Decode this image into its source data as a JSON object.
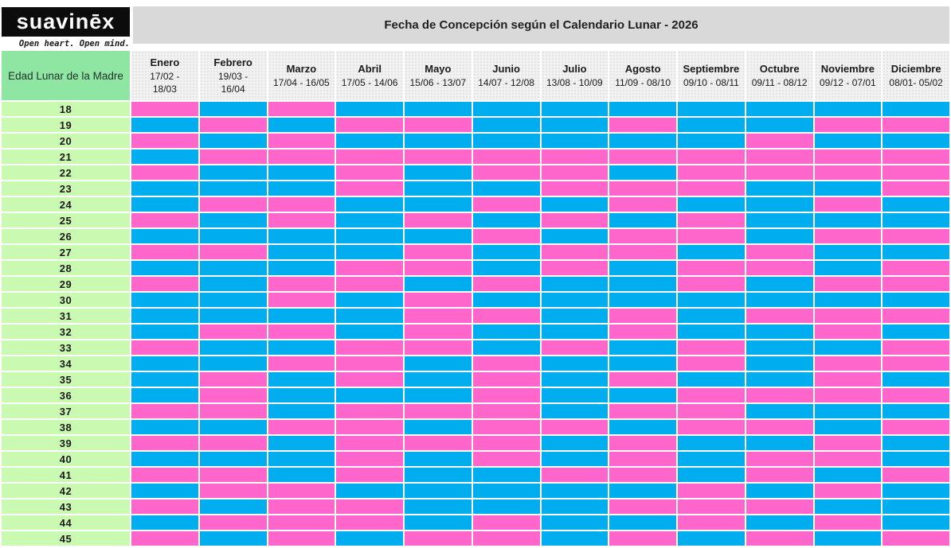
{
  "brand": {
    "logo_text": "suavinēx",
    "tagline": "Open heart. Open mind."
  },
  "title_banner": {
    "text": "Fecha de Concepción según el Calendario Lunar - 2026"
  },
  "chart_data": {
    "type": "heatmap",
    "title": "Fecha de Concepción según el Calendario Lunar - 2026",
    "corner_label": "Edad Lunar de la Madre",
    "legend_note": "P = pink cell, B = blue cell",
    "colors": {
      "pink": "#FF66CC",
      "blue": "#00AEEF",
      "corner_green": "#8FE6A2",
      "age_green": "#CAFAB1",
      "banner_gray": "#D9D9D9",
      "header_gray": "#F2F2F2"
    },
    "columns": [
      {
        "name": "Enero",
        "dates": "17/02 -\n18/03"
      },
      {
        "name": "Febrero",
        "dates": "19/03 -\n16/04"
      },
      {
        "name": "Marzo",
        "dates": "17/04 - 16/05"
      },
      {
        "name": "Abril",
        "dates": "17/05 - 14/06"
      },
      {
        "name": "Mayo",
        "dates": "15/06 - 13/07"
      },
      {
        "name": "Junio",
        "dates": "14/07 - 12/08"
      },
      {
        "name": "Julio",
        "dates": "13/08 - 10/09"
      },
      {
        "name": "Agosto",
        "dates": "11/09 - 08/10"
      },
      {
        "name": "Septiembre",
        "dates": "09/10 - 08/11"
      },
      {
        "name": "Octubre",
        "dates": "09/11 - 08/12"
      },
      {
        "name": "Noviembre",
        "dates": "09/12 - 07/01"
      },
      {
        "name": "Diciembre",
        "dates": "08/01- 05/02"
      }
    ],
    "rows": [
      {
        "age": 18,
        "cells": "PBPBBBBBBBBB"
      },
      {
        "age": 19,
        "cells": "BPBPPBBPBBPP"
      },
      {
        "age": 20,
        "cells": "PBPBBBBBBPBB"
      },
      {
        "age": 21,
        "cells": "BPPPPPPPPPPP"
      },
      {
        "age": 22,
        "cells": "PBBPBPPBPPPP"
      },
      {
        "age": 23,
        "cells": "BBBPBBPPPBBP"
      },
      {
        "age": 24,
        "cells": "BPPBBPBPBBPB"
      },
      {
        "age": 25,
        "cells": "PBPBPBPBPBBB"
      },
      {
        "age": 26,
        "cells": "BBBBBPBPPBPP"
      },
      {
        "age": 27,
        "cells": "PPBBPBPPBPBB"
      },
      {
        "age": 28,
        "cells": "BBBPPBPBPPBP"
      },
      {
        "age": 29,
        "cells": "PBPPBPBBPBPP"
      },
      {
        "age": 30,
        "cells": "BBPBPBBBBBBB"
      },
      {
        "age": 31,
        "cells": "BBBBPPBPBPPP"
      },
      {
        "age": 32,
        "cells": "BPPBPBBPBBPB"
      },
      {
        "age": 33,
        "cells": "PBBPPBPBPBBP"
      },
      {
        "age": 34,
        "cells": "BBPPBPBBPBPP"
      },
      {
        "age": 35,
        "cells": "BPBPBPBPBBPB"
      },
      {
        "age": 36,
        "cells": "BPBBBPBBPPPP"
      },
      {
        "age": 37,
        "cells": "PPBPPPBPPBBB"
      },
      {
        "age": 38,
        "cells": "BBPPBPPBPPBP"
      },
      {
        "age": 39,
        "cells": "PPBPPPBPBBPB"
      },
      {
        "age": 40,
        "cells": "BBBPBPBPBPPB"
      },
      {
        "age": 41,
        "cells": "PPBPBBPPBPBP"
      },
      {
        "age": 42,
        "cells": "BPPBBBBBPBPB"
      },
      {
        "age": 43,
        "cells": "PBPPBBBPPPBB"
      },
      {
        "age": 44,
        "cells": "BPPPBPBBPBPB"
      },
      {
        "age": 45,
        "cells": "PBPBPPBPBPBP"
      }
    ]
  }
}
